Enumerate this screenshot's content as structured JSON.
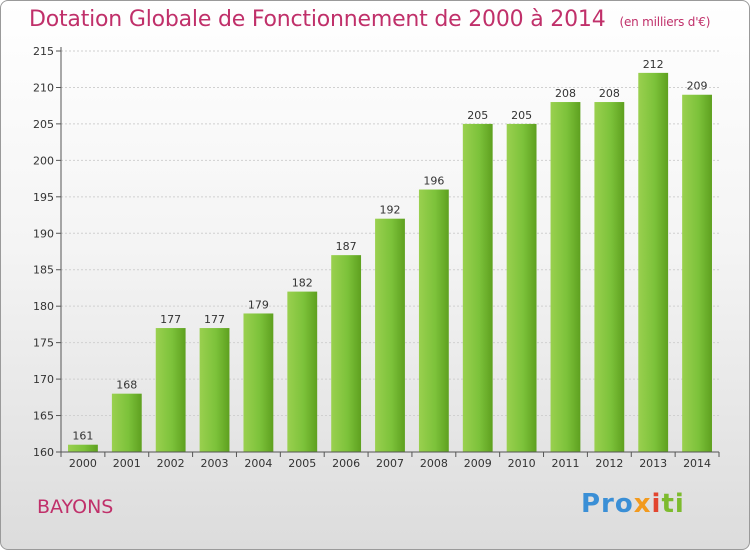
{
  "chart_data": {
    "type": "bar",
    "title": "Dotation Globale de Fonctionnement de 2000 à 2014",
    "subtitle": "(en milliers d'€)",
    "categories": [
      "2000",
      "2001",
      "2002",
      "2003",
      "2004",
      "2005",
      "2006",
      "2007",
      "2008",
      "2009",
      "2010",
      "2011",
      "2012",
      "2013",
      "2014"
    ],
    "values": [
      161,
      168,
      177,
      177,
      179,
      182,
      187,
      192,
      196,
      205,
      205,
      208,
      208,
      212,
      209
    ],
    "ylim": [
      160,
      215
    ],
    "yticks": [
      160,
      165,
      170,
      175,
      180,
      185,
      190,
      195,
      200,
      205,
      210,
      215
    ],
    "xlabel": "",
    "ylabel": "",
    "bar_color": "#7cc23a",
    "bar_color_dark": "#5ea01f"
  },
  "place_name": "BAYONS",
  "logo": {
    "text": "Proxiti",
    "parts": [
      "Pro",
      "x",
      "i",
      "ti"
    ]
  }
}
